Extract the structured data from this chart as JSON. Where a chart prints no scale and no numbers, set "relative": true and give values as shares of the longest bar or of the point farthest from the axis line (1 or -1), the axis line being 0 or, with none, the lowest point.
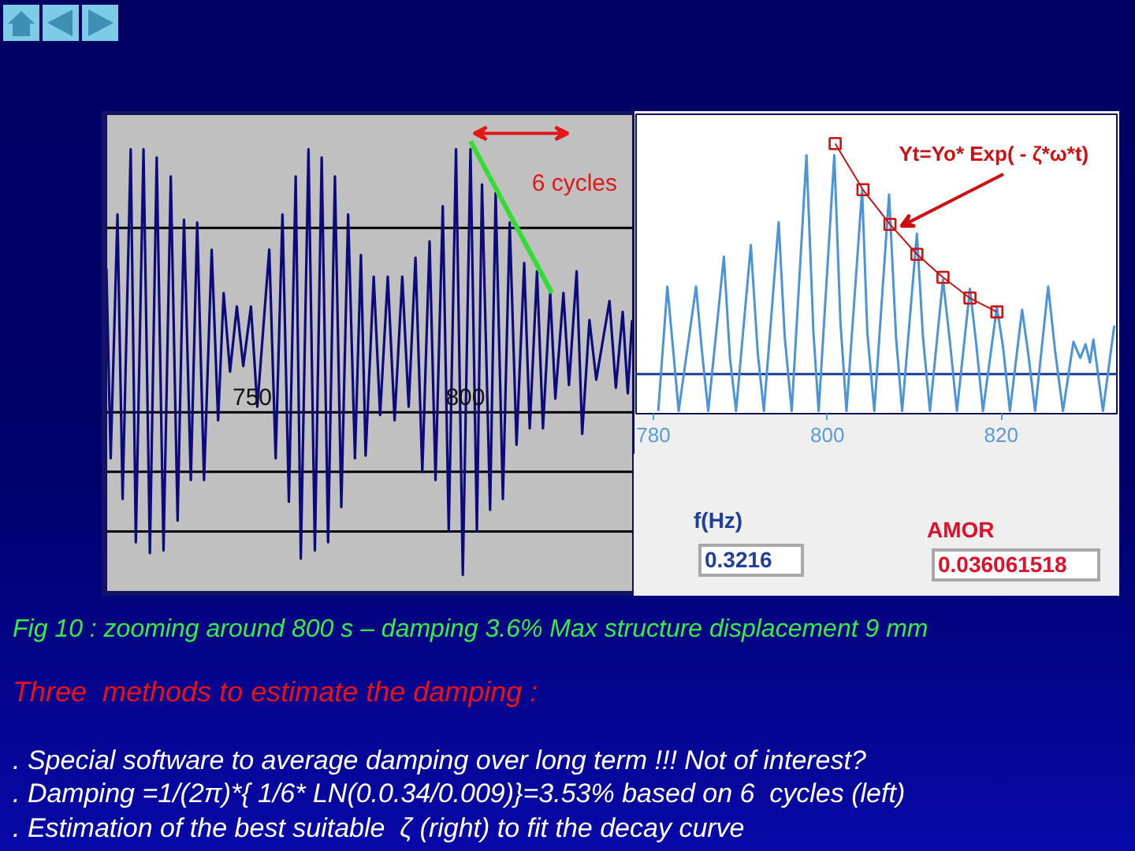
{
  "chart_data": [
    {
      "type": "line",
      "relative": true,
      "xlim": [
        715.8,
        839.3
      ],
      "xticks": [
        750,
        800
      ],
      "series": [
        {
          "color": "#0b0b7d",
          "x": [
            715.8,
            716.8,
            718.4,
            719.6,
            721.5,
            722.7,
            724.5,
            726.0,
            727.6,
            729.2,
            730.9,
            732.5,
            734.0,
            735.6,
            737.1,
            738.7,
            740.5,
            742.0,
            743.3,
            744.8,
            746.4,
            747.9,
            749.7,
            751.2,
            754.0,
            755.5,
            757.1,
            758.6,
            760.2,
            761.4,
            763.2,
            764.7,
            766.3,
            767.8,
            769.4,
            770.9,
            772.5,
            774.1,
            775.5,
            776.6,
            778.5,
            780.0,
            781.8,
            783.4,
            785.2,
            786.7,
            788.3,
            789.9,
            791.6,
            793.0,
            794.7,
            796.1,
            797.8,
            799.4,
            801.2,
            802.7,
            803.9,
            805.8,
            807.1,
            808.8,
            810.4,
            812.0,
            813.8,
            815.1,
            816.8,
            818.2,
            819.9,
            821.1,
            823.0,
            824.3,
            826.1,
            827.4,
            829.1,
            830.7,
            833.8,
            835.3,
            836.9,
            838.1,
            839.1
          ],
          "values": [
            0.53,
            -0.17,
            0.73,
            -0.32,
            0.97,
            -0.48,
            0.97,
            -0.52,
            0.94,
            -0.51,
            0.87,
            -0.4,
            0.71,
            -0.25,
            0.7,
            -0.25,
            0.6,
            -0.03,
            0.44,
            0.15,
            0.39,
            0.17,
            0.39,
            0.02,
            0.6,
            -0.17,
            0.73,
            -0.33,
            0.87,
            -0.54,
            0.97,
            -0.51,
            0.94,
            -0.48,
            0.87,
            -0.35,
            0.73,
            -0.17,
            0.58,
            -0.16,
            0.5,
            -0.01,
            0.5,
            -0.03,
            0.5,
            0.02,
            0.57,
            -0.22,
            0.63,
            -0.25,
            0.76,
            -0.44,
            0.97,
            -0.6,
            0.97,
            -0.44,
            0.84,
            -0.36,
            0.81,
            -0.32,
            0.7,
            -0.12,
            0.55,
            -0.06,
            0.52,
            -0.06,
            0.44,
            0.05,
            0.44,
            0.1,
            0.52,
            -0.08,
            0.34,
            0.12,
            0.41,
            0.09,
            0.37,
            0.07,
            0.34
          ]
        },
        {
          "color": "#33dd33",
          "x": [
            801.2,
            820.3
          ],
          "values": [
            1.0,
            0.44
          ]
        }
      ],
      "ref_lines": [
        {
          "axis": "y",
          "value": 0,
          "color": "#000000"
        },
        {
          "axis": "y",
          "value": 0.68,
          "color": "#000000"
        },
        {
          "axis": "y",
          "value": -0.22,
          "color": "#000000"
        },
        {
          "axis": "y",
          "value": -0.44,
          "color": "#000000"
        }
      ],
      "annotations": [
        "6 cycles"
      ]
    },
    {
      "type": "line",
      "relative": true,
      "xlim": [
        778,
        833.3
      ],
      "xticks": [
        780,
        800,
        820
      ],
      "series": [
        {
          "color": "#4a94dc",
          "x": [
            780.55,
            781.6,
            782.3,
            782.9,
            784.9,
            785.6,
            786.3,
            788.1,
            788.8,
            789.5,
            791.2,
            792.0,
            792.7,
            794.4,
            795.1,
            795.9,
            797.6,
            798.4,
            799.0,
            800.8,
            801.5,
            802.2,
            804.0,
            804.6,
            805.4,
            807.1,
            807.9,
            808.6,
            810.3,
            811.0,
            811.8,
            813.3,
            814.1,
            814.9,
            816.4,
            817.1,
            817.9,
            819.5,
            820.2,
            821.0,
            822.4,
            823.1,
            823.9,
            825.4,
            826.2,
            827.1,
            828.3,
            829.1,
            829.7,
            830.2,
            830.6,
            831.7,
            833.0
          ],
          "values": [
            -0.16,
            0.38,
            0.09,
            -0.16,
            0.38,
            0.09,
            -0.16,
            0.51,
            0.07,
            -0.16,
            0.56,
            0.09,
            -0.16,
            0.66,
            0.16,
            -0.16,
            0.95,
            0.18,
            -0.16,
            0.95,
            0.23,
            -0.16,
            0.8,
            0.18,
            -0.16,
            0.78,
            0.16,
            -0.16,
            0.61,
            0.16,
            -0.16,
            0.41,
            0.14,
            -0.16,
            0.37,
            0.14,
            -0.16,
            0.29,
            0.12,
            -0.16,
            0.28,
            0.09,
            -0.16,
            0.38,
            0.1,
            -0.16,
            0.14,
            0.07,
            0.13,
            0.05,
            0.15,
            -0.16,
            0.21
          ]
        },
        {
          "color": "#cc1111",
          "marker": "square",
          "x": [
            800.9,
            804.1,
            807.2,
            810.3,
            813.3,
            816.4,
            819.5
          ],
          "values": [
            1.0,
            0.8,
            0.65,
            0.52,
            0.42,
            0.33,
            0.27
          ]
        }
      ],
      "ref_lines": [
        {
          "axis": "y",
          "value": 0,
          "color": "#1a3f8f"
        }
      ],
      "annotations": [
        "Yt=Yo* Exp( - ζ*ω*t)",
        "f(Hz)",
        "0.3216",
        "AMOR",
        "0.036061518"
      ]
    },
    {
      "type": "other",
      "annotations": [
        "Fig 10 : zooming around 800 s – damping 3.6% Max structure displacement 9 mm",
        "Three  methods to estimate the damping :",
        ". Special software to average damping over long term !!! Not of interest?",
        ". Damping =1/(2π)*{ 1/6* LN(0.0.34/0.009)}=3.53% based on 6  cycles (left)",
        ". Estimation of the best suitable  ζ (right) to fit the decay curve"
      ]
    }
  ]
}
